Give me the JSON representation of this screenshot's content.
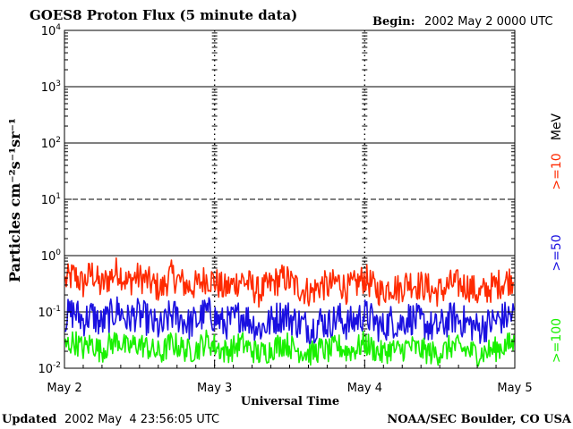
{
  "header": {
    "title": "GOES8 Proton Flux (5 minute data)",
    "begin_label": "Begin:",
    "begin_value": "2002 May 2 0000 UTC"
  },
  "footer": {
    "updated_label": "Updated",
    "updated_value": "2002 May  4 23:56:05 UTC",
    "credit": "NOAA/SEC Boulder, CO USA"
  },
  "colors": {
    "ge10": "#ff2a00",
    "ge50": "#1a10e0",
    "ge100": "#19f000",
    "axis": "#000000"
  },
  "chart_data": {
    "type": "line",
    "title": "GOES8 Proton Flux (5 minute data)",
    "xlabel": "Universal Time",
    "ylabel": "Particles cm⁻²s⁻¹sr⁻¹",
    "y_scale": "log",
    "ylim": [
      0.01,
      10000
    ],
    "y_ticks": [
      {
        "value": 10000,
        "base": "10",
        "exp": "4"
      },
      {
        "value": 1000,
        "base": "10",
        "exp": "3"
      },
      {
        "value": 100,
        "base": "10",
        "exp": "2"
      },
      {
        "value": 10,
        "base": "10",
        "exp": "1"
      },
      {
        "value": 1,
        "base": "10",
        "exp": "0"
      },
      {
        "value": 0.1,
        "base": "10",
        "exp": "-1"
      },
      {
        "value": 0.01,
        "base": "10",
        "exp": "-2"
      }
    ],
    "x_ticks": [
      "May 2",
      "May 3",
      "May 4",
      "May 5"
    ],
    "reference_lines": [
      {
        "value": 1000,
        "style": "solid"
      },
      {
        "value": 100,
        "style": "solid"
      },
      {
        "value": 10,
        "style": "dashed"
      },
      {
        "value": 1,
        "style": "solid"
      },
      {
        "value": 0.1,
        "style": "solid"
      }
    ],
    "legend": {
      "placement": "right",
      "unit": "MeV",
      "entries": [
        ">=10",
        ">=50",
        ">=100"
      ]
    },
    "series": [
      {
        "name": ">=10",
        "samples": [
          0.35,
          0.45,
          0.3,
          0.5,
          0.28,
          0.4,
          0.55,
          0.32,
          0.42,
          0.38,
          0.3,
          0.25,
          0.45,
          0.35,
          0.28,
          0.3,
          0.4,
          0.35,
          0.25,
          0.3,
          0.38,
          0.3,
          0.22,
          0.28,
          0.35,
          0.4,
          0.3,
          0.25,
          0.22,
          0.3,
          0.28,
          0.35,
          0.25,
          0.3,
          0.4,
          0.28,
          0.22,
          0.3,
          0.25,
          0.35,
          0.3,
          0.28,
          0.22,
          0.25,
          0.32,
          0.3,
          0.28,
          0.2,
          0.25,
          0.3,
          0.35,
          0.4
        ]
      },
      {
        "name": ">=50",
        "samples": [
          0.08,
          0.1,
          0.07,
          0.09,
          0.06,
          0.08,
          0.11,
          0.07,
          0.09,
          0.08,
          0.06,
          0.05,
          0.09,
          0.08,
          0.06,
          0.07,
          0.1,
          0.08,
          0.06,
          0.07,
          0.09,
          0.07,
          0.05,
          0.06,
          0.08,
          0.09,
          0.07,
          0.06,
          0.05,
          0.07,
          0.06,
          0.08,
          0.06,
          0.07,
          0.09,
          0.07,
          0.05,
          0.07,
          0.06,
          0.08,
          0.07,
          0.06,
          0.05,
          0.06,
          0.08,
          0.07,
          0.06,
          0.05,
          0.06,
          0.07,
          0.08,
          0.09
        ]
      },
      {
        "name": ">=100",
        "samples": [
          0.025,
          0.03,
          0.022,
          0.028,
          0.02,
          0.026,
          0.032,
          0.022,
          0.027,
          0.025,
          0.02,
          0.018,
          0.028,
          0.024,
          0.02,
          0.022,
          0.03,
          0.025,
          0.02,
          0.022,
          0.028,
          0.022,
          0.018,
          0.02,
          0.025,
          0.028,
          0.022,
          0.02,
          0.018,
          0.022,
          0.02,
          0.025,
          0.02,
          0.022,
          0.028,
          0.022,
          0.018,
          0.022,
          0.02,
          0.025,
          0.022,
          0.02,
          0.018,
          0.02,
          0.025,
          0.022,
          0.02,
          0.018,
          0.02,
          0.022,
          0.025,
          0.028
        ]
      }
    ]
  }
}
